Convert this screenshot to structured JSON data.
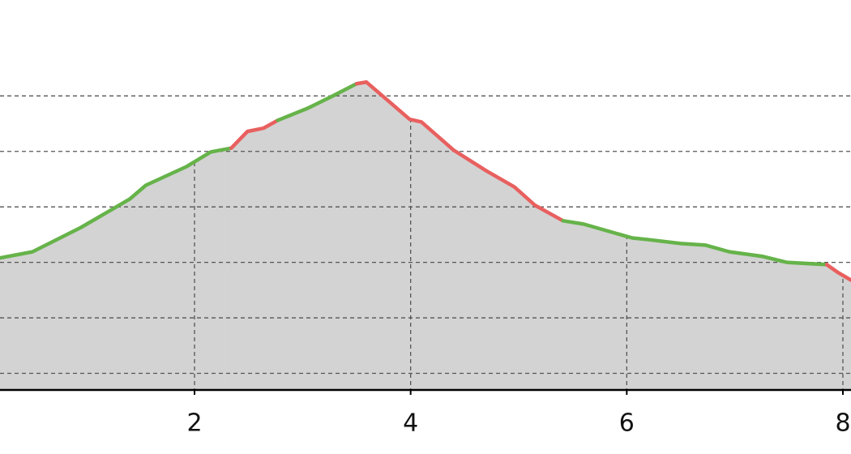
{
  "chart_data": {
    "type": "line",
    "xlim": [
      0.2,
      8.075
    ],
    "xticks": [
      2,
      4,
      6,
      8
    ],
    "ylim": [
      0.7,
      7.7
    ],
    "yticks": [
      1,
      2,
      3,
      4,
      5,
      6
    ],
    "grid": true,
    "fill_color": "#d3d3d3",
    "series": [
      {
        "color": "#66b34a",
        "x": [
          0.2,
          0.5,
          0.95,
          1.4,
          1.55,
          1.93,
          2.15,
          2.34
        ],
        "values": [
          3.08,
          3.19,
          3.63,
          4.14,
          4.39,
          4.73,
          4.99,
          5.06
        ]
      },
      {
        "color": "#e8605f",
        "x": [
          2.34,
          2.49,
          2.64,
          2.77
        ],
        "values": [
          5.06,
          5.36,
          5.42,
          5.56
        ]
      },
      {
        "color": "#66b34a",
        "x": [
          2.77,
          3.05,
          3.28,
          3.5
        ],
        "values": [
          5.56,
          5.78,
          6.0,
          6.22
        ]
      },
      {
        "color": "#e8605f",
        "x": [
          3.5,
          3.59,
          3.8,
          3.99,
          4.1,
          4.4,
          4.7,
          4.96,
          5.15,
          5.41
        ],
        "values": [
          6.22,
          6.25,
          5.9,
          5.58,
          5.53,
          5.02,
          4.65,
          4.36,
          4.03,
          3.75
        ]
      },
      {
        "color": "#66b34a",
        "x": [
          5.41,
          5.6,
          6.05,
          6.2,
          6.5,
          6.73,
          6.95,
          7.25,
          7.48,
          7.85
        ],
        "values": [
          3.75,
          3.69,
          3.44,
          3.41,
          3.34,
          3.31,
          3.19,
          3.11,
          3.0,
          2.96
        ]
      },
      {
        "color": "#e8605f",
        "x": [
          7.85,
          7.96,
          8.075
        ],
        "values": [
          2.96,
          2.81,
          2.68
        ]
      }
    ]
  }
}
